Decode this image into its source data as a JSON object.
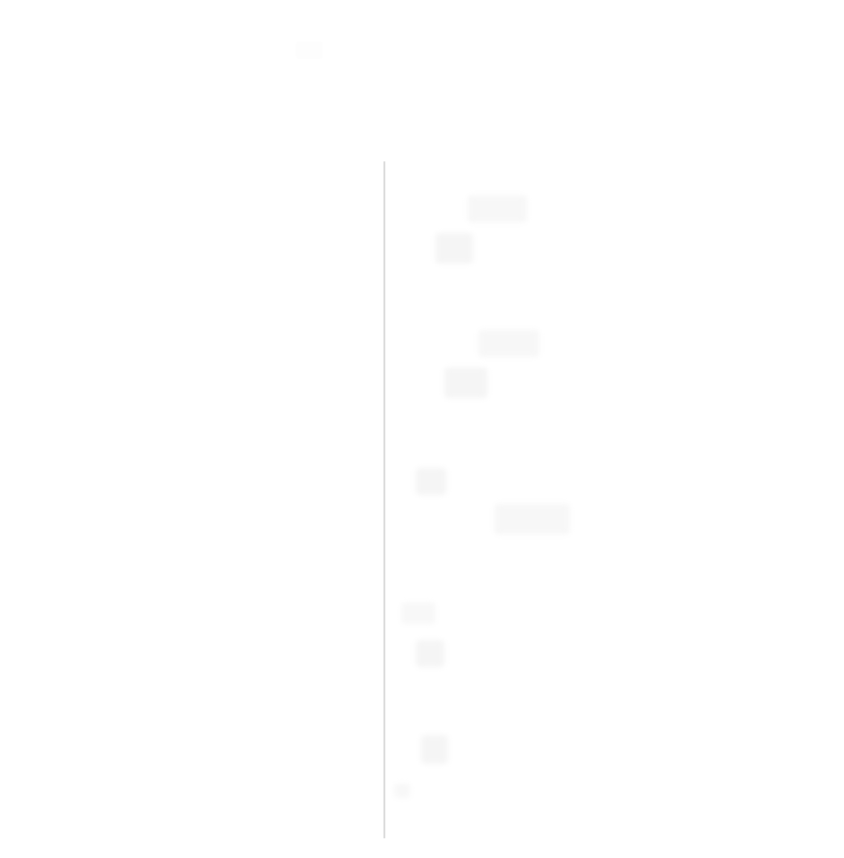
{
  "page": {
    "title": "",
    "background": "#ffffff",
    "divider_color": "#d9d9d9",
    "placeholder_color": "#f7f7f7"
  },
  "left_pane": {
    "items": []
  },
  "right_pane": {
    "placeholders": [
      {
        "name": "placeholder-1"
      },
      {
        "name": "placeholder-2"
      },
      {
        "name": "placeholder-3"
      },
      {
        "name": "placeholder-4"
      },
      {
        "name": "placeholder-5"
      },
      {
        "name": "placeholder-6"
      },
      {
        "name": "placeholder-7"
      },
      {
        "name": "placeholder-8"
      },
      {
        "name": "placeholder-9"
      },
      {
        "name": "placeholder-10"
      }
    ]
  }
}
